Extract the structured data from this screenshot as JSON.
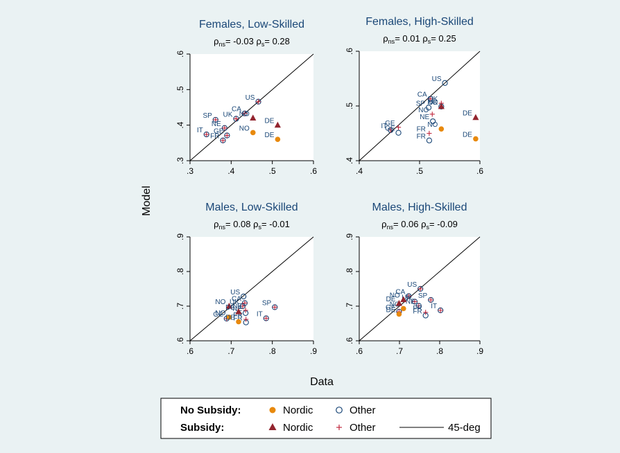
{
  "figure": {
    "ylabel": "Model",
    "xlabel": "Data"
  },
  "chart_data": [
    {
      "type": "scatter",
      "title": "Females, Low-Skilled",
      "rho_ns": "-0.03",
      "rho_s": "0.28",
      "xlim": [
        0.3,
        0.6
      ],
      "ylim": [
        0.3,
        0.6
      ],
      "xticks": [
        ".3",
        ".4",
        ".5",
        ".6"
      ],
      "yticks": [
        ".3",
        ".4",
        ".5",
        ".6"
      ],
      "reference_line": "45-deg",
      "points": [
        {
          "label": "US",
          "x": 0.466,
          "y": 0.466,
          "group": "no_subsidy_other"
        },
        {
          "label": "US",
          "x": 0.466,
          "y": 0.466,
          "group": "subsidy_other"
        },
        {
          "label": "CA",
          "x": 0.433,
          "y": 0.433,
          "group": "no_subsidy_other"
        },
        {
          "label": "CA",
          "x": 0.433,
          "y": 0.433,
          "group": "subsidy_other"
        },
        {
          "label": "UK",
          "x": 0.412,
          "y": 0.418,
          "group": "no_subsidy_other"
        },
        {
          "label": "UK",
          "x": 0.412,
          "y": 0.418,
          "group": "subsidy_other"
        },
        {
          "label": "SP",
          "x": 0.362,
          "y": 0.415,
          "group": "no_subsidy_other"
        },
        {
          "label": "SP",
          "x": 0.362,
          "y": 0.415,
          "group": "subsidy_other"
        },
        {
          "label": "NE",
          "x": 0.384,
          "y": 0.392,
          "group": "no_subsidy_other"
        },
        {
          "label": "NE",
          "x": 0.384,
          "y": 0.392,
          "group": "subsidy_other"
        },
        {
          "label": "GE",
          "x": 0.39,
          "y": 0.371,
          "group": "no_subsidy_other"
        },
        {
          "label": "GE",
          "x": 0.39,
          "y": 0.371,
          "group": "subsidy_other"
        },
        {
          "label": "IT",
          "x": 0.34,
          "y": 0.374,
          "group": "no_subsidy_other"
        },
        {
          "label": "IT",
          "x": 0.34,
          "y": 0.374,
          "group": "subsidy_other"
        },
        {
          "label": "FR",
          "x": 0.38,
          "y": 0.357,
          "group": "no_subsidy_other"
        },
        {
          "label": "FR",
          "x": 0.38,
          "y": 0.357,
          "group": "subsidy_other"
        },
        {
          "label": "NO",
          "x": 0.453,
          "y": 0.379,
          "group": "no_subsidy_nordic"
        },
        {
          "label": "NO",
          "x": 0.453,
          "y": 0.42,
          "group": "subsidy_nordic"
        },
        {
          "label": "DE",
          "x": 0.513,
          "y": 0.36,
          "group": "no_subsidy_nordic"
        },
        {
          "label": "DE",
          "x": 0.513,
          "y": 0.4,
          "group": "subsidy_nordic"
        }
      ]
    },
    {
      "type": "scatter",
      "title": "Females, High-Skilled",
      "rho_ns": "0.01",
      "rho_s": "0.25",
      "xlim": [
        0.4,
        0.6
      ],
      "ylim": [
        0.4,
        0.6
      ],
      "xticks": [
        ".4",
        ".5",
        ".6"
      ],
      "yticks": [
        ".4",
        ".5",
        ".6"
      ],
      "reference_line": "45-deg",
      "points": [
        {
          "label": "US",
          "x": 0.542,
          "y": 0.542,
          "group": "no_subsidy_other"
        },
        {
          "label": "CA",
          "x": 0.518,
          "y": 0.513,
          "group": "no_subsidy_other"
        },
        {
          "label": "CA",
          "x": 0.518,
          "y": 0.513,
          "group": "subsidy_other"
        },
        {
          "label": "UK",
          "x": 0.536,
          "y": 0.505,
          "group": "subsidy_other"
        },
        {
          "label": "UK",
          "x": 0.536,
          "y": 0.499,
          "group": "no_subsidy_other"
        },
        {
          "label": "SP",
          "x": 0.515,
          "y": 0.497,
          "group": "no_subsidy_other"
        },
        {
          "label": "NO",
          "x": 0.521,
          "y": 0.485,
          "group": "subsidy_other"
        },
        {
          "label": "NE",
          "x": 0.522,
          "y": 0.472,
          "group": "no_subsidy_other"
        },
        {
          "label": "IT",
          "x": 0.452,
          "y": 0.456,
          "group": "no_subsidy_other"
        },
        {
          "label": "IT",
          "x": 0.452,
          "y": 0.456,
          "group": "subsidy_other"
        },
        {
          "label": "GE",
          "x": 0.465,
          "y": 0.461,
          "group": "subsidy_other"
        },
        {
          "label": "GE",
          "x": 0.465,
          "y": 0.451,
          "group": "no_subsidy_other"
        },
        {
          "label": "FR",
          "x": 0.516,
          "y": 0.45,
          "group": "subsidy_other"
        },
        {
          "label": "FR",
          "x": 0.516,
          "y": 0.437,
          "group": "no_subsidy_other"
        },
        {
          "label": "NO",
          "x": 0.536,
          "y": 0.499,
          "group": "subsidy_nordic"
        },
        {
          "label": "NO",
          "x": 0.536,
          "y": 0.458,
          "group": "no_subsidy_nordic"
        },
        {
          "label": "DE",
          "x": 0.593,
          "y": 0.479,
          "group": "subsidy_nordic"
        },
        {
          "label": "DE",
          "x": 0.593,
          "y": 0.44,
          "group": "no_subsidy_nordic"
        }
      ]
    },
    {
      "type": "scatter",
      "title": "Males, Low-Skilled",
      "rho_ns": "0.08",
      "rho_s": "-0.01",
      "xlim": [
        0.6,
        0.9
      ],
      "ylim": [
        0.6,
        0.9
      ],
      "xticks": [
        ".6",
        ".7",
        ".8",
        ".9"
      ],
      "yticks": [
        ".6",
        ".7",
        ".8",
        ".9"
      ],
      "reference_line": "45-deg",
      "points": [
        {
          "label": "US",
          "x": 0.73,
          "y": 0.728,
          "group": "no_subsidy_other"
        },
        {
          "label": "CA",
          "x": 0.733,
          "y": 0.709,
          "group": "no_subsidy_other"
        },
        {
          "label": "CA",
          "x": 0.733,
          "y": 0.709,
          "group": "subsidy_other"
        },
        {
          "label": "UK",
          "x": 0.728,
          "y": 0.7,
          "group": "no_subsidy_other"
        },
        {
          "label": "UK",
          "x": 0.728,
          "y": 0.7,
          "group": "subsidy_other"
        },
        {
          "label": "SP",
          "x": 0.806,
          "y": 0.697,
          "group": "no_subsidy_other"
        },
        {
          "label": "SP",
          "x": 0.806,
          "y": 0.697,
          "group": "subsidy_other"
        },
        {
          "label": "NE",
          "x": 0.735,
          "y": 0.68,
          "group": "no_subsidy_other"
        },
        {
          "label": "NE",
          "x": 0.735,
          "y": 0.688,
          "group": "subsidy_other"
        },
        {
          "label": "GE",
          "x": 0.689,
          "y": 0.664,
          "group": "no_subsidy_other"
        },
        {
          "label": "GE",
          "x": 0.689,
          "y": 0.664,
          "group": "subsidy_other"
        },
        {
          "label": "IT",
          "x": 0.785,
          "y": 0.665,
          "group": "no_subsidy_other"
        },
        {
          "label": "IT",
          "x": 0.785,
          "y": 0.665,
          "group": "subsidy_other"
        },
        {
          "label": "FR",
          "x": 0.736,
          "y": 0.653,
          "group": "no_subsidy_other"
        },
        {
          "label": "FR",
          "x": 0.736,
          "y": 0.662,
          "group": "subsidy_other"
        },
        {
          "label": "NO",
          "x": 0.695,
          "y": 0.668,
          "group": "no_subsidy_nordic"
        },
        {
          "label": "NO",
          "x": 0.695,
          "y": 0.7,
          "group": "subsidy_nordic"
        },
        {
          "label": "DE",
          "x": 0.718,
          "y": 0.655,
          "group": "no_subsidy_nordic"
        },
        {
          "label": "DE",
          "x": 0.718,
          "y": 0.684,
          "group": "subsidy_nordic"
        }
      ]
    },
    {
      "type": "scatter",
      "title": "Males, High-Skilled",
      "rho_ns": "0.06",
      "rho_s": "-0.09",
      "xlim": [
        0.6,
        0.9
      ],
      "ylim": [
        0.6,
        0.9
      ],
      "xticks": [
        ".6",
        ".7",
        ".8",
        ".9"
      ],
      "yticks": [
        ".6",
        ".7",
        ".8",
        ".9"
      ],
      "reference_line": "45-deg",
      "points": [
        {
          "label": "US",
          "x": 0.752,
          "y": 0.75,
          "group": "no_subsidy_other"
        },
        {
          "label": "US",
          "x": 0.752,
          "y": 0.75,
          "group": "subsidy_other"
        },
        {
          "label": "CA",
          "x": 0.723,
          "y": 0.729,
          "group": "no_subsidy_other"
        },
        {
          "label": "CA",
          "x": 0.723,
          "y": 0.729,
          "group": "subsidy_other"
        },
        {
          "label": "UK",
          "x": 0.738,
          "y": 0.713,
          "group": "no_subsidy_other"
        },
        {
          "label": "UK",
          "x": 0.738,
          "y": 0.713,
          "group": "subsidy_other"
        },
        {
          "label": "SP",
          "x": 0.778,
          "y": 0.718,
          "group": "no_subsidy_other"
        },
        {
          "label": "SP",
          "x": 0.778,
          "y": 0.718,
          "group": "subsidy_other"
        },
        {
          "label": "NE",
          "x": 0.748,
          "y": 0.701,
          "group": "no_subsidy_other"
        },
        {
          "label": "NE",
          "x": 0.748,
          "y": 0.701,
          "group": "subsidy_other"
        },
        {
          "label": "GE",
          "x": 0.699,
          "y": 0.684,
          "group": "no_subsidy_other"
        },
        {
          "label": "GE",
          "x": 0.699,
          "y": 0.684,
          "group": "subsidy_other"
        },
        {
          "label": "IT",
          "x": 0.802,
          "y": 0.688,
          "group": "no_subsidy_other"
        },
        {
          "label": "IT",
          "x": 0.802,
          "y": 0.688,
          "group": "subsidy_other"
        },
        {
          "label": "FR",
          "x": 0.765,
          "y": 0.673,
          "group": "no_subsidy_other"
        },
        {
          "label": "FR",
          "x": 0.765,
          "y": 0.682,
          "group": "subsidy_other"
        },
        {
          "label": "NO",
          "x": 0.71,
          "y": 0.693,
          "group": "no_subsidy_nordic"
        },
        {
          "label": "NO",
          "x": 0.71,
          "y": 0.719,
          "group": "subsidy_nordic"
        },
        {
          "label": "DE",
          "x": 0.699,
          "y": 0.677,
          "group": "no_subsidy_nordic"
        },
        {
          "label": "DE",
          "x": 0.699,
          "y": 0.708,
          "group": "subsidy_nordic"
        }
      ]
    }
  ],
  "legend": {
    "no_subsidy_label": "No Subsidy:",
    "subsidy_label": "Subsidy:",
    "nordic": "Nordic",
    "other": "Other",
    "line": "45-deg"
  },
  "colors": {
    "background": "#eaf2f3",
    "plot_bg": "#ffffff",
    "title": "#1a4777",
    "label": "#1a4777",
    "nordic_circle": "#e8890d",
    "other_circle": "#1a4777",
    "nordic_triangle": "#93252f",
    "other_plus": "#c0273d",
    "line": "#000000"
  }
}
